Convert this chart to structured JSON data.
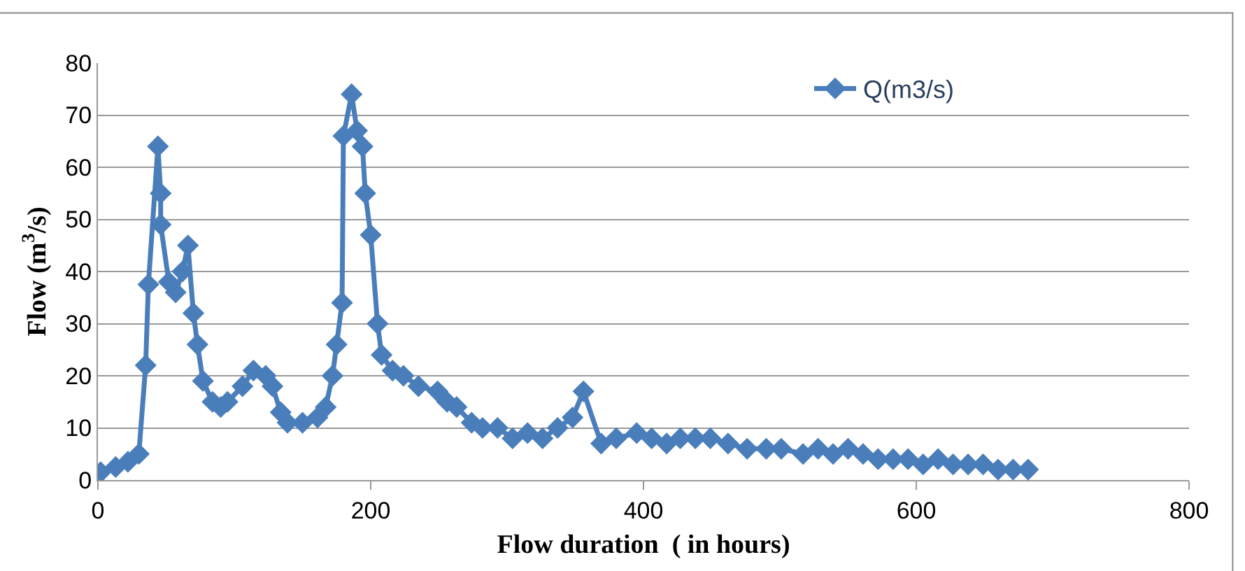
{
  "chart_data": {
    "type": "line",
    "xlabel": "Flow duration  ( in hours)",
    "ylabel": "Flow (m$^{3}$/s)",
    "xlim": [
      0,
      800
    ],
    "xticks": [
      0,
      200,
      400,
      600,
      800
    ],
    "ylim": [
      0,
      80
    ],
    "yticks": [
      0,
      10,
      20,
      30,
      40,
      50,
      60,
      70,
      80
    ],
    "grid": "y",
    "legend": "top right",
    "marker": "diamond",
    "line_style": "solid",
    "series": [
      {
        "name": "Q(m3/s)",
        "color": "#4a7ebb",
        "x": [
          2,
          13,
          22,
          30,
          35,
          37,
          44,
          46,
          46,
          52,
          57,
          62,
          66,
          70,
          73,
          77,
          84,
          90,
          95,
          106,
          114,
          123,
          128,
          134,
          139,
          150,
          161,
          167,
          172,
          175,
          179,
          180,
          186,
          190,
          194,
          196,
          200,
          205,
          208,
          216,
          224,
          235,
          249,
          256,
          263,
          274,
          282,
          293,
          304,
          315,
          326,
          337,
          348,
          356,
          369,
          380,
          395,
          406,
          417,
          427,
          438,
          449,
          462,
          476,
          490,
          501,
          517,
          528,
          539,
          550,
          561,
          572,
          583,
          594,
          605,
          616,
          627,
          638,
          649,
          660,
          671,
          682
        ],
        "values": [
          1.5,
          2.5,
          3.5,
          5,
          22,
          37.5,
          64,
          55,
          49,
          38,
          36,
          40,
          45,
          32,
          26,
          19,
          15,
          14,
          15,
          18,
          21,
          20,
          18,
          13,
          11,
          11,
          12,
          14,
          20,
          26,
          34,
          66,
          74,
          67,
          64,
          55,
          47,
          30,
          24,
          21,
          20,
          18,
          17,
          15,
          14,
          11,
          10,
          10,
          8,
          9,
          8,
          10,
          12,
          17,
          7,
          8,
          9,
          8,
          7,
          8,
          8,
          8,
          7,
          6,
          6,
          6,
          5,
          6,
          5,
          6,
          5,
          4,
          4,
          4,
          3,
          4,
          3,
          3,
          3,
          2,
          2,
          2
        ]
      }
    ]
  }
}
